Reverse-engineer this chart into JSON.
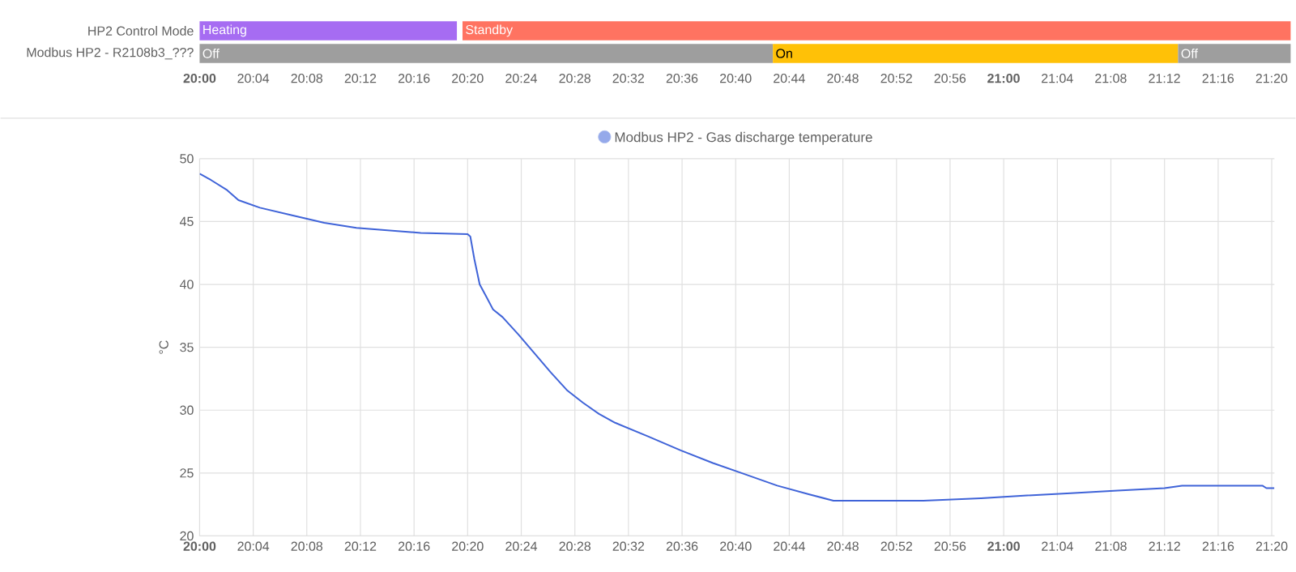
{
  "chart_data": [
    {
      "type": "bar",
      "orientation": "horizontal",
      "categories": [
        "HP2 Control Mode",
        "Modbus HP2 - R2108b3_???"
      ],
      "series": [
        {
          "base": [
            20,
            20
          ],
          "values": [
            0.32,
            0.713
          ],
          "colors": [
            "#a66cf2",
            "#9e9e9e"
          ],
          "value_labels": [
            "Heating",
            "Off"
          ]
        },
        {
          "base": [
            20.327,
            20.713
          ],
          "values": [
            1.03,
            0.504
          ],
          "colors": [
            "#ff7361",
            "#ffc107"
          ],
          "value_labels": [
            "Standby",
            "On"
          ]
        },
        {
          "base": [
            null,
            21.217
          ],
          "values": [
            null,
            0.14
          ],
          "colors": [
            null,
            "#9e9e9e"
          ],
          "value_labels": [
            null,
            "Off"
          ]
        }
      ],
      "xlim": [
        20,
        21.357
      ],
      "xticks": [
        {
          "value": 20,
          "label": "20:00"
        },
        {
          "value": 20.0667,
          "label": "20:04"
        },
        {
          "value": 20.1333,
          "label": "20:08"
        },
        {
          "value": 20.2,
          "label": "20:12"
        },
        {
          "value": 20.2667,
          "label": "20:16"
        },
        {
          "value": 20.3333,
          "label": "20:20"
        },
        {
          "value": 20.4,
          "label": "20:24"
        },
        {
          "value": 20.4667,
          "label": "20:28"
        },
        {
          "value": 20.5333,
          "label": "20:32"
        },
        {
          "value": 20.6,
          "label": "20:36"
        },
        {
          "value": 20.6667,
          "label": "20:40"
        },
        {
          "value": 20.7333,
          "label": "20:44"
        },
        {
          "value": 20.8,
          "label": "20:48"
        },
        {
          "value": 20.8667,
          "label": "20:52"
        },
        {
          "value": 20.9333,
          "label": "20:56"
        },
        {
          "value": 21,
          "label": "21:00"
        },
        {
          "value": 21.0667,
          "label": "21:04"
        },
        {
          "value": 21.1333,
          "label": "21:08"
        },
        {
          "value": 21.2,
          "label": "21:12"
        },
        {
          "value": 21.2667,
          "label": "21:16"
        },
        {
          "value": 21.3333,
          "label": "21:20"
        }
      ]
    },
    {
      "type": "line",
      "legend": "top",
      "grid": true,
      "ylabel": "°C",
      "series": [
        {
          "name": "Modbus HP2 - Gas discharge temperature",
          "color": "#3f63d8",
          "x": [
            20,
            20.0142,
            20.0342,
            20.0483,
            20.075,
            20.115,
            20.155,
            20.195,
            20.235,
            20.275,
            20.3333,
            20.3367,
            20.3417,
            20.3483,
            20.3567,
            20.365,
            20.3767,
            20.3967,
            20.4167,
            20.4367,
            20.4567,
            20.4767,
            20.4967,
            20.5167,
            20.5583,
            20.5983,
            20.6383,
            20.6783,
            20.7183,
            20.7583,
            20.7883,
            20.84,
            20.9,
            20.9717,
            21.025,
            21.0833,
            21.1417,
            21.2,
            21.2217,
            21.2667,
            21.3217,
            21.3267,
            21.3367
          ],
          "values": [
            48.8,
            48.3,
            47.5,
            46.7,
            46.1,
            45.5,
            44.9,
            44.5,
            44.3,
            44.1,
            44.0,
            43.8,
            42.0,
            40.0,
            39.0,
            38.0,
            37.4,
            36.0,
            34.5,
            33.0,
            31.6,
            30.6,
            29.7,
            29.0,
            27.9,
            26.8,
            25.8,
            24.9,
            24.0,
            23.3,
            22.8,
            22.8,
            22.8,
            23.0,
            23.2,
            23.4,
            23.6,
            23.8,
            24.0,
            24.0,
            24.0,
            23.8,
            23.8
          ]
        }
      ],
      "xlim": [
        20,
        21.3367
      ],
      "xticks": [
        {
          "value": 20,
          "label": "20:00"
        },
        {
          "value": 20.0667,
          "label": "20:04"
        },
        {
          "value": 20.1333,
          "label": "20:08"
        },
        {
          "value": 20.2,
          "label": "20:12"
        },
        {
          "value": 20.2667,
          "label": "20:16"
        },
        {
          "value": 20.3333,
          "label": "20:20"
        },
        {
          "value": 20.4,
          "label": "20:24"
        },
        {
          "value": 20.4667,
          "label": "20:28"
        },
        {
          "value": 20.5333,
          "label": "20:32"
        },
        {
          "value": 20.6,
          "label": "20:36"
        },
        {
          "value": 20.6667,
          "label": "20:40"
        },
        {
          "value": 20.7333,
          "label": "20:44"
        },
        {
          "value": 20.8,
          "label": "20:48"
        },
        {
          "value": 20.8667,
          "label": "20:52"
        },
        {
          "value": 20.9333,
          "label": "20:56"
        },
        {
          "value": 21,
          "label": "21:00"
        },
        {
          "value": 21.0667,
          "label": "21:04"
        },
        {
          "value": 21.1333,
          "label": "21:08"
        },
        {
          "value": 21.2,
          "label": "21:12"
        },
        {
          "value": 21.2667,
          "label": "21:16"
        },
        {
          "value": 21.3333,
          "label": "21:20"
        }
      ],
      "ylim": [
        20,
        50
      ],
      "yticks": [
        20,
        25,
        30,
        35,
        40,
        45,
        50
      ]
    }
  ]
}
